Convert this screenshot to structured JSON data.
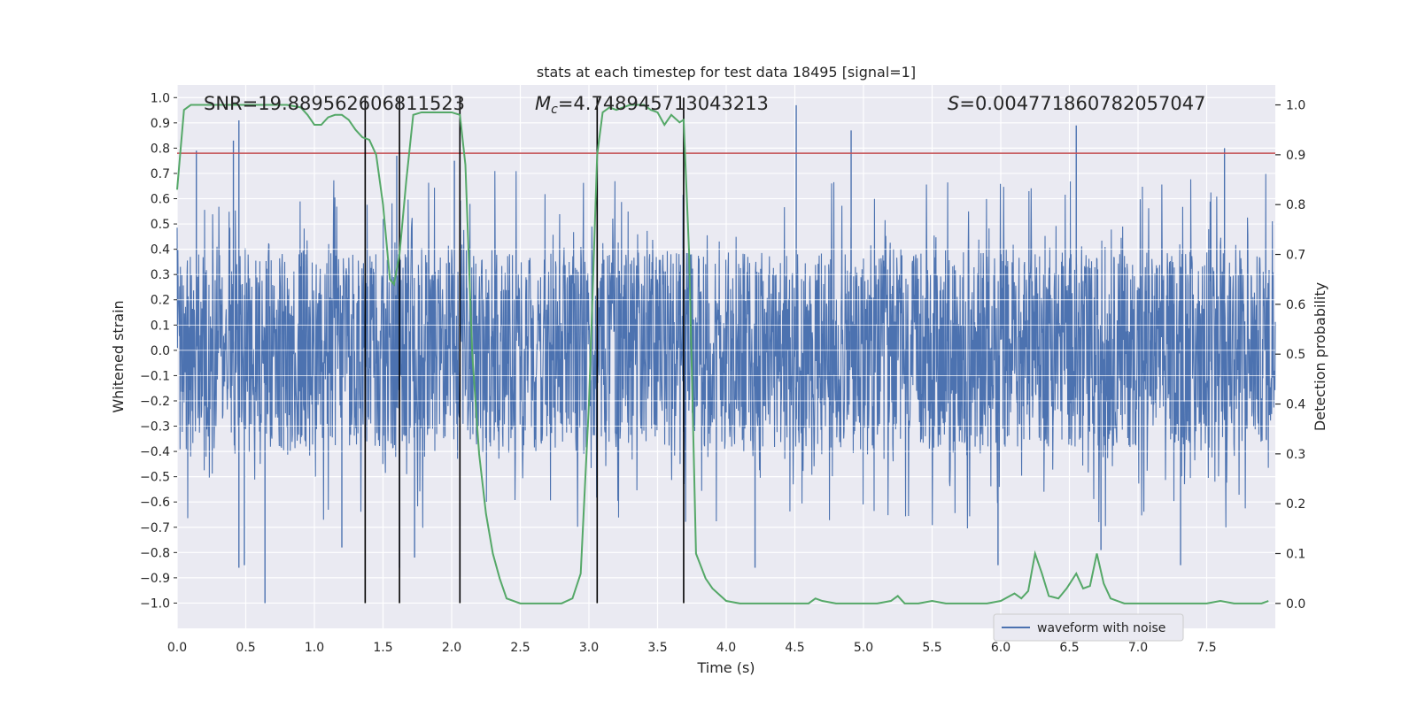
{
  "chart_data": {
    "type": "line",
    "title": "stats at each timestep for test data 18495 [signal=1]",
    "xlabel": "Time (s)",
    "ylabel": "Whitened strain",
    "ylabel_right": "Detection probability",
    "xlim": [
      0.0,
      8.0
    ],
    "ylim": [
      -1.1,
      1.05
    ],
    "ylim_right": [
      -0.05,
      1.04
    ],
    "x_ticks": [
      "0.0",
      "0.5",
      "1.0",
      "1.5",
      "2.0",
      "2.5",
      "3.0",
      "3.5",
      "4.0",
      "4.5",
      "5.0",
      "5.5",
      "6.0",
      "6.5",
      "7.0",
      "7.5"
    ],
    "y_ticks": [
      "−1.0",
      "−0.9",
      "−0.8",
      "−0.7",
      "−0.6",
      "−0.5",
      "−0.4",
      "−0.3",
      "−0.2",
      "−0.1",
      "0.0",
      "0.1",
      "0.2",
      "0.3",
      "0.4",
      "0.5",
      "0.6",
      "0.7",
      "0.8",
      "0.9",
      "1.0"
    ],
    "y_ticks_right": [
      "0.0",
      "0.1",
      "0.2",
      "0.3",
      "0.4",
      "0.5",
      "0.6",
      "0.7",
      "0.8",
      "0.9",
      "1.0"
    ],
    "annotations": {
      "snr": "SNR=19.889562606811523",
      "mc_symbol": "M",
      "mc_sub": "c",
      "mc_value": "=4.748945713043213",
      "s_symbol": "S",
      "s_value": "=0.004771860782057047"
    },
    "threshold": {
      "value": 0.78,
      "color": "#c44e52"
    },
    "vertical_lines": [
      1.37,
      1.62,
      2.06,
      3.06,
      3.69
    ],
    "vertical_line_range": [
      -1.0,
      1.0
    ],
    "waveform": {
      "name": "waveform with noise",
      "color": "#4c72b0",
      "envelope": 0.38,
      "peaks": [
        {
          "x": 0.45,
          "y": 0.91
        },
        {
          "x": 0.41,
          "y": 0.83
        },
        {
          "x": 0.14,
          "y": 0.79
        },
        {
          "x": 4.51,
          "y": 0.97
        },
        {
          "x": 4.91,
          "y": 0.87
        },
        {
          "x": 6.55,
          "y": 0.89
        },
        {
          "x": 7.63,
          "y": 0.8
        },
        {
          "x": 1.6,
          "y": 0.77
        },
        {
          "x": 2.02,
          "y": 0.75
        },
        {
          "x": 0.64,
          "y": -1.0
        },
        {
          "x": 0.45,
          "y": -0.86
        },
        {
          "x": 0.49,
          "y": -0.85
        },
        {
          "x": 1.62,
          "y": -0.86
        },
        {
          "x": 1.73,
          "y": -0.82
        },
        {
          "x": 2.06,
          "y": -0.8
        },
        {
          "x": 4.21,
          "y": -0.86
        },
        {
          "x": 5.98,
          "y": -0.85
        },
        {
          "x": 7.31,
          "y": -0.85
        },
        {
          "x": 1.2,
          "y": -0.78
        },
        {
          "x": 6.73,
          "y": -0.79
        }
      ]
    },
    "probability": {
      "name": "detection probability",
      "color": "#55a868",
      "x": [
        0.0,
        0.05,
        0.1,
        0.2,
        0.3,
        0.4,
        0.5,
        0.6,
        0.7,
        0.8,
        0.9,
        0.95,
        1.0,
        1.05,
        1.1,
        1.15,
        1.2,
        1.25,
        1.3,
        1.35,
        1.4,
        1.45,
        1.5,
        1.55,
        1.58,
        1.62,
        1.67,
        1.72,
        1.78,
        1.85,
        1.92,
        2.0,
        2.06,
        2.1,
        2.15,
        2.2,
        2.25,
        2.3,
        2.35,
        2.4,
        2.5,
        2.6,
        2.7,
        2.8,
        2.88,
        2.94,
        3.0,
        3.06,
        3.1,
        3.15,
        3.2,
        3.25,
        3.3,
        3.35,
        3.4,
        3.45,
        3.5,
        3.55,
        3.6,
        3.66,
        3.69,
        3.73,
        3.78,
        3.85,
        3.9,
        4.0,
        4.1,
        4.2,
        4.3,
        4.4,
        4.5,
        4.6,
        4.65,
        4.7,
        4.8,
        4.9,
        5.0,
        5.1,
        5.2,
        5.25,
        5.3,
        5.4,
        5.5,
        5.6,
        5.7,
        5.8,
        5.9,
        6.0,
        6.1,
        6.15,
        6.2,
        6.25,
        6.3,
        6.35,
        6.42,
        6.48,
        6.55,
        6.6,
        6.65,
        6.7,
        6.75,
        6.8,
        6.85,
        6.9,
        7.0,
        7.2,
        7.5,
        7.6,
        7.7,
        7.8,
        7.9,
        7.95
      ],
      "y": [
        0.83,
        0.99,
        1.0,
        1.0,
        1.0,
        1.0,
        1.0,
        1.0,
        1.0,
        1.0,
        0.995,
        0.98,
        0.96,
        0.96,
        0.975,
        0.98,
        0.98,
        0.97,
        0.95,
        0.935,
        0.93,
        0.9,
        0.8,
        0.65,
        0.64,
        0.7,
        0.85,
        0.98,
        0.985,
        0.985,
        0.985,
        0.985,
        0.98,
        0.88,
        0.5,
        0.3,
        0.18,
        0.1,
        0.05,
        0.01,
        0.0,
        0.0,
        0.0,
        0.0,
        0.01,
        0.06,
        0.4,
        0.9,
        0.985,
        0.995,
        0.99,
        0.995,
        1.0,
        1.0,
        1.0,
        0.99,
        0.985,
        0.96,
        0.98,
        0.965,
        0.97,
        0.7,
        0.1,
        0.05,
        0.03,
        0.005,
        0.0,
        0.0,
        0.0,
        0.0,
        0.0,
        0.0,
        0.01,
        0.005,
        0.0,
        0.0,
        0.0,
        0.0,
        0.005,
        0.015,
        0.0,
        0.0,
        0.005,
        0.0,
        0.0,
        0.0,
        0.0,
        0.005,
        0.02,
        0.01,
        0.025,
        0.1,
        0.06,
        0.015,
        0.01,
        0.03,
        0.06,
        0.03,
        0.035,
        0.1,
        0.04,
        0.01,
        0.005,
        0.0,
        0.0,
        0.0,
        0.0,
        0.005,
        0.0,
        0.0,
        0.0,
        0.005
      ]
    },
    "legend": {
      "placement": "bottom-right",
      "entries": [
        "waveform with noise"
      ]
    }
  }
}
